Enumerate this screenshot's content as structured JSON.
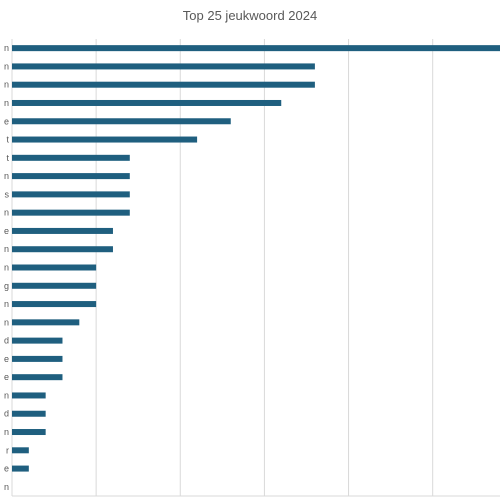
{
  "chart_data": {
    "type": "bar",
    "orientation": "horizontal",
    "title": "Top 25 jeukwoord  2024",
    "categories": [
      "n",
      "n",
      "n",
      "n",
      "e",
      "t",
      "t",
      "n",
      "s",
      "n",
      "e",
      "n",
      "n",
      "g",
      "n",
      "n",
      "d",
      "e",
      "e",
      "n",
      "d",
      "n",
      "r",
      "e",
      "n"
    ],
    "values": [
      29,
      18,
      18,
      16,
      13,
      11,
      7,
      7,
      7,
      7,
      6,
      6,
      5,
      5,
      5,
      4,
      3,
      3,
      3,
      2,
      2,
      2,
      1,
      1,
      0
    ],
    "xlim": [
      0,
      29
    ],
    "x_gridline_step": 5,
    "grid": true,
    "legend": "none",
    "bar_color": "#1F5F7F",
    "grid_color": "#D9D9D9"
  }
}
